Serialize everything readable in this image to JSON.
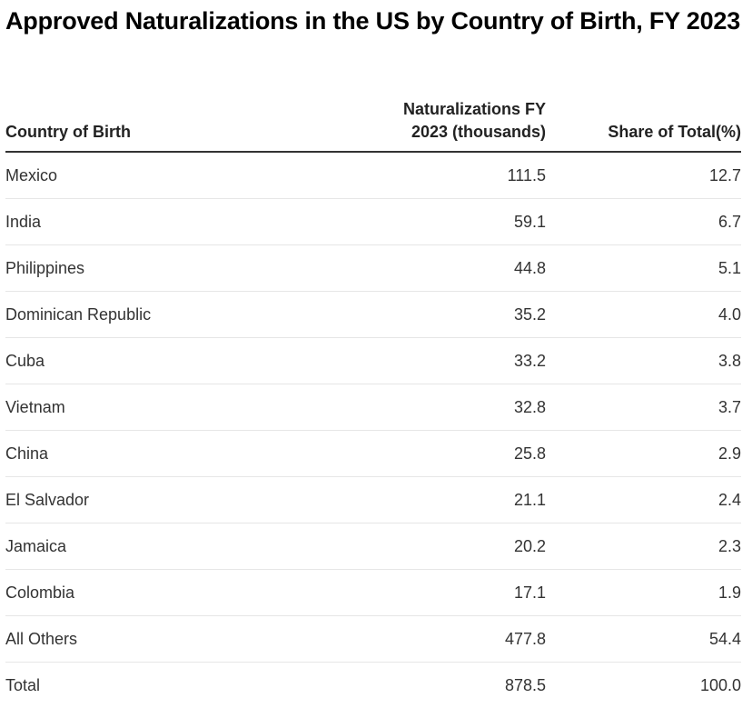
{
  "chart_data": {
    "type": "table",
    "title": "Approved Naturalizations in the US by Country of Birth, FY 2023",
    "columns": [
      "Country of Birth",
      "Naturalizations FY 2023 (thousands)",
      "Share of Total(%)"
    ],
    "rows": [
      {
        "country": "Mexico",
        "naturalizations": "111.5",
        "share": "12.7"
      },
      {
        "country": "India",
        "naturalizations": "59.1",
        "share": "6.7"
      },
      {
        "country": "Philippines",
        "naturalizations": "44.8",
        "share": "5.1"
      },
      {
        "country": "Dominican Republic",
        "naturalizations": "35.2",
        "share": "4.0"
      },
      {
        "country": "Cuba",
        "naturalizations": "33.2",
        "share": "3.8"
      },
      {
        "country": "Vietnam",
        "naturalizations": "32.8",
        "share": "3.7"
      },
      {
        "country": "China",
        "naturalizations": "25.8",
        "share": "2.9"
      },
      {
        "country": "El Salvador",
        "naturalizations": "21.1",
        "share": "2.4"
      },
      {
        "country": "Jamaica",
        "naturalizations": "20.2",
        "share": "2.3"
      },
      {
        "country": "Colombia",
        "naturalizations": "17.1",
        "share": "1.9"
      },
      {
        "country": "All Others",
        "naturalizations": "477.8",
        "share": "54.4"
      },
      {
        "country": "Total",
        "naturalizations": "878.5",
        "share": "100.0"
      }
    ]
  }
}
